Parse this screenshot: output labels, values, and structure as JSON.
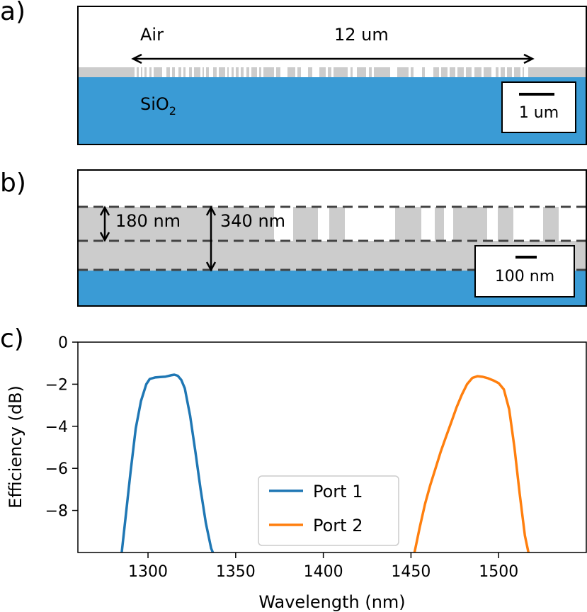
{
  "panel_a": {
    "label": "a)",
    "air_label": "Air",
    "length_label": "12 um",
    "substrate_label_main": "SiO",
    "substrate_label_sub": "2",
    "scale_label": "1 um",
    "colors": {
      "substrate": "#3a9bd5",
      "silicon": "#cccccc"
    }
  },
  "panel_b": {
    "label": "b)",
    "etch_depth_label": "180 nm",
    "thickness_label": "340 nm",
    "scale_label": "100 nm",
    "colors": {
      "substrate": "#3a9bd5",
      "silicon": "#cccccc",
      "dashed": "#444444"
    }
  },
  "panel_c": {
    "label": "c)",
    "chart_data": {
      "type": "line",
      "xlabel": "Wavelength (nm)",
      "ylabel": "Efficiency (dB)",
      "xlim": [
        1260,
        1550
      ],
      "ylim": [
        -10,
        0
      ],
      "xticks": [
        1300,
        1350,
        1400,
        1450,
        1500
      ],
      "yticks": [
        0,
        -2,
        -4,
        -6,
        -8
      ],
      "ytick_labels": [
        "0",
        "−2",
        "−4",
        "−6",
        "−8"
      ],
      "grid": false,
      "legend_position": "bottom-center",
      "series": [
        {
          "name": "Port 1",
          "color": "#1f77b4",
          "x": [
            1285,
            1287,
            1290,
            1293,
            1296,
            1299,
            1301,
            1304,
            1307,
            1310,
            1313,
            1315,
            1317,
            1319,
            1321,
            1324,
            1327,
            1330,
            1333,
            1336,
            1337
          ],
          "y": [
            -10.0,
            -8.5,
            -6.2,
            -4.1,
            -2.8,
            -2.0,
            -1.75,
            -1.68,
            -1.66,
            -1.64,
            -1.58,
            -1.55,
            -1.6,
            -1.8,
            -2.2,
            -3.5,
            -5.2,
            -7.0,
            -8.6,
            -9.8,
            -10.0
          ]
        },
        {
          "name": "Port 2",
          "color": "#ff7f0e",
          "x": [
            1452,
            1455,
            1458,
            1461,
            1464,
            1467,
            1470,
            1473,
            1476,
            1479,
            1482,
            1485,
            1488,
            1491,
            1494,
            1497,
            1500,
            1503,
            1506,
            1509,
            1512,
            1515,
            1517
          ],
          "y": [
            -10.0,
            -8.8,
            -7.7,
            -6.8,
            -6.0,
            -5.2,
            -4.5,
            -3.8,
            -3.1,
            -2.5,
            -2.0,
            -1.7,
            -1.62,
            -1.65,
            -1.72,
            -1.82,
            -1.95,
            -2.25,
            -3.2,
            -5.0,
            -7.2,
            -9.2,
            -10.0
          ]
        }
      ]
    }
  }
}
